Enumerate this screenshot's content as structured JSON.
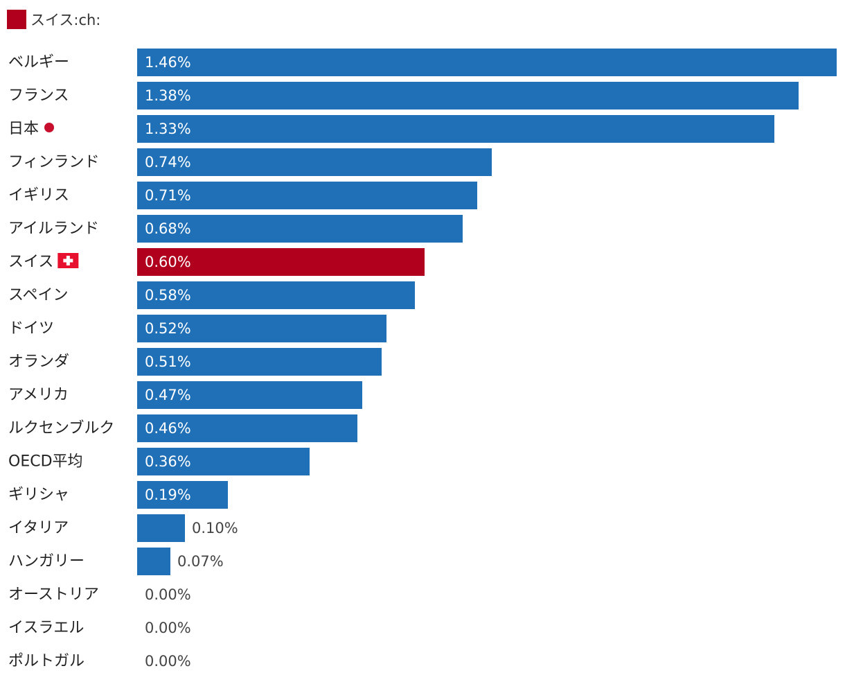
{
  "legend": {
    "label": "スイス:ch:",
    "color": "#b0001e"
  },
  "colors": {
    "default": "#2070b8",
    "highlight": "#b0001e",
    "label_inside": "#ffffff",
    "label_outside": "#444444"
  },
  "chart_data": {
    "type": "bar",
    "orientation": "horizontal",
    "categories": [
      "ベルギー",
      "フランス",
      "日本",
      "フィンランド",
      "イギリス",
      "アイルランド",
      "スイス",
      "スペイン",
      "ドイツ",
      "オランダ",
      "アメリカ",
      "ルクセンブルク",
      "OECD平均",
      "ギリシャ",
      "イタリア",
      "ハンガリー",
      "オーストリア",
      "イスラエル",
      "ポルトガル"
    ],
    "values": [
      1.46,
      1.38,
      1.33,
      0.74,
      0.71,
      0.68,
      0.6,
      0.58,
      0.52,
      0.51,
      0.47,
      0.46,
      0.36,
      0.19,
      0.1,
      0.07,
      0.0,
      0.0,
      0.0
    ],
    "value_labels": [
      "1.46%",
      "1.38%",
      "1.33%",
      "0.74%",
      "0.71%",
      "0.68%",
      "0.60%",
      "0.58%",
      "0.52%",
      "0.51%",
      "0.47%",
      "0.46%",
      "0.36%",
      "0.19%",
      "0.10%",
      "0.07%",
      "0.00%",
      "0.00%",
      "0.00%"
    ],
    "highlight": "スイス",
    "category_icons": {
      "日本": "japan-flag-icon",
      "スイス": "swiss-flag-icon"
    },
    "xlim": [
      0,
      1.46
    ],
    "grid": false
  }
}
